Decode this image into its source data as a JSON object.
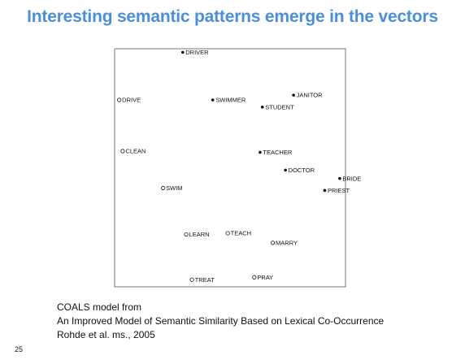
{
  "slide": {
    "title": "Interesting semantic patterns emerge in the vectors",
    "page_number": "25"
  },
  "caption": {
    "line1": "COALS model from",
    "line2": "An Improved Model of Semantic Similarity Based on Lexical Co-Occurrence",
    "line3": "Rohde et al. ms., 2005"
  },
  "colors": {
    "title": "#4a8fd8",
    "frame": "#555555",
    "marker": "#111111"
  },
  "chart_data": {
    "type": "scatter",
    "title": "",
    "xlabel": "",
    "ylabel": "",
    "xlim": [
      0,
      100
    ],
    "ylim": [
      0,
      100
    ],
    "grid": false,
    "legend": "none",
    "marker_legend": {
      "filled": "noun",
      "hollow": "verb"
    },
    "points": [
      {
        "label": "DRIVER",
        "x": 29.5,
        "y": 98.5,
        "marker": "filled"
      },
      {
        "label": "DRIVE",
        "x": 2.0,
        "y": 78.5,
        "marker": "hollow"
      },
      {
        "label": "SWIMMER",
        "x": 42.5,
        "y": 78.5,
        "marker": "filled"
      },
      {
        "label": "JANITOR",
        "x": 77.5,
        "y": 80.5,
        "marker": "filled"
      },
      {
        "label": "STUDENT",
        "x": 64.0,
        "y": 75.5,
        "marker": "filled"
      },
      {
        "label": "CLEAN",
        "x": 3.5,
        "y": 57.0,
        "marker": "hollow"
      },
      {
        "label": "TEACHER",
        "x": 63.0,
        "y": 56.5,
        "marker": "filled"
      },
      {
        "label": "DOCTOR",
        "x": 74.0,
        "y": 49.0,
        "marker": "filled"
      },
      {
        "label": "BRIDE",
        "x": 97.5,
        "y": 45.5,
        "marker": "filled"
      },
      {
        "label": "PRIEST",
        "x": 91.0,
        "y": 40.5,
        "marker": "filled"
      },
      {
        "label": "SWIM",
        "x": 21.0,
        "y": 41.5,
        "marker": "hollow"
      },
      {
        "label": "LEARN",
        "x": 31.0,
        "y": 22.0,
        "marker": "hollow"
      },
      {
        "label": "TEACH",
        "x": 49.0,
        "y": 22.5,
        "marker": "hollow"
      },
      {
        "label": "MARRY",
        "x": 68.5,
        "y": 18.5,
        "marker": "hollow"
      },
      {
        "label": "TREAT",
        "x": 33.5,
        "y": 3.0,
        "marker": "hollow"
      },
      {
        "label": "PRAY",
        "x": 60.5,
        "y": 4.0,
        "marker": "hollow"
      }
    ]
  }
}
